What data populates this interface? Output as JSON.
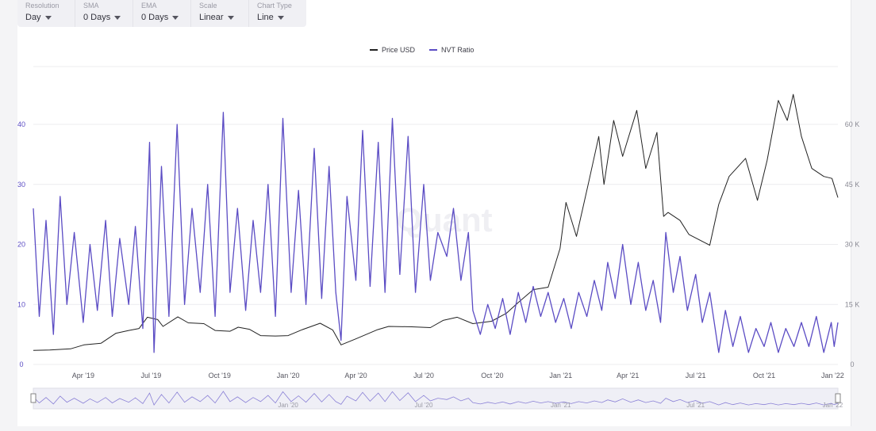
{
  "controls": [
    {
      "label": "Resolution",
      "value": "Day"
    },
    {
      "label": "SMA",
      "value": "0 Days"
    },
    {
      "label": "EMA",
      "value": "0 Days"
    },
    {
      "label": "Scale",
      "value": "Linear"
    },
    {
      "label": "Chart Type",
      "value": "Line"
    }
  ],
  "watermark": "Quant",
  "colors": {
    "price": "#222222",
    "nvt": "#5b4cc4",
    "grid": "#ececef",
    "left_axis": "#5b4cc4",
    "right_axis": "#8a8a94"
  },
  "chart_data": {
    "type": "line",
    "title": "",
    "legend": [
      "Price USD",
      "NVT Ratio"
    ],
    "legend_position": "top-center",
    "x_range": [
      "2019-01-24",
      "2022-01-08"
    ],
    "x_ticks": [
      {
        "date": "2019-04-01",
        "label": "Apr '19"
      },
      {
        "date": "2019-07-01",
        "label": "Jul '19"
      },
      {
        "date": "2019-10-01",
        "label": "Oct '19"
      },
      {
        "date": "2020-01-01",
        "label": "Jan '20"
      },
      {
        "date": "2020-04-01",
        "label": "Apr '20"
      },
      {
        "date": "2020-07-01",
        "label": "Jul '20"
      },
      {
        "date": "2020-10-01",
        "label": "Oct '20"
      },
      {
        "date": "2021-01-01",
        "label": "Jan '21"
      },
      {
        "date": "2021-04-01",
        "label": "Apr '21"
      },
      {
        "date": "2021-07-01",
        "label": "Jul '21"
      },
      {
        "date": "2021-10-01",
        "label": "Oct '21"
      },
      {
        "date": "2022-01-01",
        "label": "Jan '22"
      }
    ],
    "y_left": {
      "min": 0,
      "max": 40,
      "ticks": [
        "0",
        "10",
        "20",
        "30",
        "40"
      ],
      "series": "NVT Ratio"
    },
    "y_right": {
      "min": 0,
      "max": 60000,
      "ticks": [
        "0",
        "15 K",
        "30 K",
        "45 K",
        "60 K"
      ],
      "series": "Price USD"
    },
    "grid": true,
    "series": [
      {
        "name": "Price USD",
        "axis": "right",
        "points": [
          [
            "2019-01-24",
            3500
          ],
          [
            "2019-02-15",
            3600
          ],
          [
            "2019-03-15",
            3900
          ],
          [
            "2019-04-02",
            4900
          ],
          [
            "2019-04-25",
            5300
          ],
          [
            "2019-05-15",
            7800
          ],
          [
            "2019-06-01",
            8500
          ],
          [
            "2019-06-15",
            9000
          ],
          [
            "2019-06-26",
            11800
          ],
          [
            "2019-07-10",
            11200
          ],
          [
            "2019-07-17",
            9500
          ],
          [
            "2019-08-06",
            11900
          ],
          [
            "2019-08-20",
            10400
          ],
          [
            "2019-09-10",
            10200
          ],
          [
            "2019-09-25",
            8500
          ],
          [
            "2019-10-15",
            8300
          ],
          [
            "2019-10-26",
            9300
          ],
          [
            "2019-11-10",
            8800
          ],
          [
            "2019-11-25",
            7200
          ],
          [
            "2019-12-15",
            7100
          ],
          [
            "2020-01-01",
            7200
          ],
          [
            "2020-01-20",
            8700
          ],
          [
            "2020-02-13",
            10300
          ],
          [
            "2020-03-01",
            8600
          ],
          [
            "2020-03-12",
            4900
          ],
          [
            "2020-04-01",
            6400
          ],
          [
            "2020-04-30",
            8700
          ],
          [
            "2020-05-15",
            9500
          ],
          [
            "2020-06-15",
            9400
          ],
          [
            "2020-07-10",
            9200
          ],
          [
            "2020-07-27",
            11000
          ],
          [
            "2020-08-15",
            11800
          ],
          [
            "2020-09-05",
            10200
          ],
          [
            "2020-09-30",
            10800
          ],
          [
            "2020-10-20",
            12800
          ],
          [
            "2020-11-05",
            15500
          ],
          [
            "2020-11-25",
            18700
          ],
          [
            "2020-12-15",
            19300
          ],
          [
            "2020-12-31",
            29000
          ],
          [
            "2021-01-08",
            40500
          ],
          [
            "2021-01-22",
            32000
          ],
          [
            "2021-02-08",
            46000
          ],
          [
            "2021-02-21",
            57000
          ],
          [
            "2021-02-28",
            45000
          ],
          [
            "2021-03-13",
            61000
          ],
          [
            "2021-03-25",
            52000
          ],
          [
            "2021-04-13",
            63500
          ],
          [
            "2021-04-25",
            49000
          ],
          [
            "2021-05-10",
            58000
          ],
          [
            "2021-05-19",
            37000
          ],
          [
            "2021-05-25",
            38000
          ],
          [
            "2021-06-10",
            36000
          ],
          [
            "2021-06-22",
            32500
          ],
          [
            "2021-07-20",
            29800
          ],
          [
            "2021-08-01",
            40000
          ],
          [
            "2021-08-15",
            47000
          ],
          [
            "2021-09-06",
            51500
          ],
          [
            "2021-09-22",
            41000
          ],
          [
            "2021-10-05",
            51000
          ],
          [
            "2021-10-20",
            66000
          ],
          [
            "2021-11-01",
            61000
          ],
          [
            "2021-11-09",
            67500
          ],
          [
            "2021-11-20",
            57000
          ],
          [
            "2021-12-04",
            49000
          ],
          [
            "2021-12-20",
            47000
          ],
          [
            "2021-12-31",
            46500
          ],
          [
            "2022-01-08",
            41700
          ]
        ]
      },
      {
        "name": "NVT Ratio",
        "axis": "left",
        "points": [
          [
            "2019-01-24",
            26
          ],
          [
            "2019-02-01",
            8
          ],
          [
            "2019-02-10",
            24
          ],
          [
            "2019-02-20",
            5
          ],
          [
            "2019-03-01",
            28
          ],
          [
            "2019-03-10",
            10
          ],
          [
            "2019-03-20",
            22
          ],
          [
            "2019-04-01",
            7
          ],
          [
            "2019-04-10",
            20
          ],
          [
            "2019-04-20",
            9
          ],
          [
            "2019-05-01",
            24
          ],
          [
            "2019-05-10",
            8
          ],
          [
            "2019-05-20",
            21
          ],
          [
            "2019-06-01",
            10
          ],
          [
            "2019-06-10",
            23
          ],
          [
            "2019-06-20",
            6
          ],
          [
            "2019-06-29",
            37
          ],
          [
            "2019-07-05",
            2
          ],
          [
            "2019-07-15",
            33
          ],
          [
            "2019-07-25",
            8
          ],
          [
            "2019-08-05",
            40
          ],
          [
            "2019-08-15",
            10
          ],
          [
            "2019-08-25",
            26
          ],
          [
            "2019-09-05",
            12
          ],
          [
            "2019-09-15",
            30
          ],
          [
            "2019-09-25",
            8
          ],
          [
            "2019-10-06",
            42
          ],
          [
            "2019-10-15",
            12
          ],
          [
            "2019-10-25",
            26
          ],
          [
            "2019-11-05",
            9
          ],
          [
            "2019-11-15",
            24
          ],
          [
            "2019-11-25",
            12
          ],
          [
            "2019-12-05",
            30
          ],
          [
            "2019-12-15",
            8
          ],
          [
            "2019-12-25",
            41
          ],
          [
            "2020-01-05",
            12
          ],
          [
            "2020-01-15",
            29
          ],
          [
            "2020-01-25",
            10
          ],
          [
            "2020-02-05",
            36
          ],
          [
            "2020-02-15",
            11
          ],
          [
            "2020-02-25",
            33
          ],
          [
            "2020-03-05",
            12
          ],
          [
            "2020-03-12",
            4
          ],
          [
            "2020-03-20",
            28
          ],
          [
            "2020-04-01",
            14
          ],
          [
            "2020-04-10",
            39
          ],
          [
            "2020-04-20",
            13
          ],
          [
            "2020-05-01",
            37
          ],
          [
            "2020-05-10",
            12
          ],
          [
            "2020-05-20",
            41
          ],
          [
            "2020-05-30",
            15
          ],
          [
            "2020-06-10",
            38
          ],
          [
            "2020-06-20",
            12
          ],
          [
            "2020-07-01",
            30
          ],
          [
            "2020-07-10",
            14
          ],
          [
            "2020-07-20",
            22
          ],
          [
            "2020-08-01",
            18
          ],
          [
            "2020-08-10",
            26
          ],
          [
            "2020-08-20",
            14
          ],
          [
            "2020-08-30",
            22
          ],
          [
            "2020-09-05",
            9
          ],
          [
            "2020-09-15",
            5
          ],
          [
            "2020-09-25",
            10
          ],
          [
            "2020-10-05",
            6
          ],
          [
            "2020-10-15",
            11
          ],
          [
            "2020-10-25",
            5
          ],
          [
            "2020-11-05",
            12
          ],
          [
            "2020-11-15",
            7
          ],
          [
            "2020-11-25",
            13
          ],
          [
            "2020-12-05",
            8
          ],
          [
            "2020-12-15",
            12
          ],
          [
            "2020-12-25",
            7
          ],
          [
            "2021-01-05",
            11
          ],
          [
            "2021-01-15",
            6
          ],
          [
            "2021-01-25",
            12
          ],
          [
            "2021-02-05",
            8
          ],
          [
            "2021-02-15",
            14
          ],
          [
            "2021-02-25",
            9
          ],
          [
            "2021-03-05",
            17
          ],
          [
            "2021-03-15",
            11
          ],
          [
            "2021-03-25",
            20
          ],
          [
            "2021-04-05",
            10
          ],
          [
            "2021-04-15",
            17
          ],
          [
            "2021-04-25",
            9
          ],
          [
            "2021-05-05",
            14
          ],
          [
            "2021-05-15",
            7
          ],
          [
            "2021-05-22",
            22
          ],
          [
            "2021-06-01",
            12
          ],
          [
            "2021-06-10",
            18
          ],
          [
            "2021-06-20",
            9
          ],
          [
            "2021-07-01",
            15
          ],
          [
            "2021-07-10",
            7
          ],
          [
            "2021-07-20",
            12
          ],
          [
            "2021-08-01",
            2
          ],
          [
            "2021-08-10",
            9
          ],
          [
            "2021-08-20",
            3
          ],
          [
            "2021-08-30",
            8
          ],
          [
            "2021-09-10",
            2
          ],
          [
            "2021-09-20",
            6
          ],
          [
            "2021-10-01",
            3
          ],
          [
            "2021-10-10",
            7
          ],
          [
            "2021-10-20",
            2
          ],
          [
            "2021-10-30",
            6
          ],
          [
            "2021-11-10",
            3
          ],
          [
            "2021-11-20",
            7
          ],
          [
            "2021-11-30",
            3
          ],
          [
            "2021-12-10",
            8
          ],
          [
            "2021-12-20",
            2
          ],
          [
            "2021-12-30",
            7
          ],
          [
            "2022-01-03",
            3
          ],
          [
            "2022-01-08",
            7
          ]
        ]
      }
    ],
    "navigator": {
      "labels": [
        "Jan '20",
        "Jul '20",
        "Jan '21",
        "Jul '21",
        "Jan '22"
      ]
    }
  }
}
